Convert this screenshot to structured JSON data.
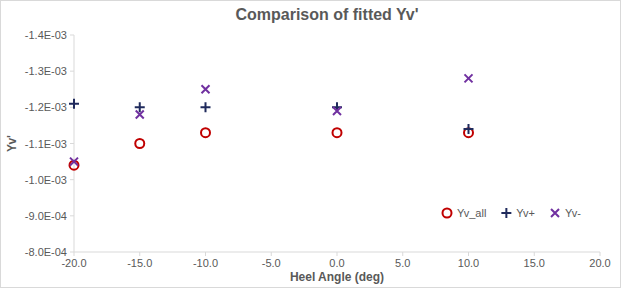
{
  "chart_data": {
    "type": "scatter",
    "title": "Comparison of fitted Yv'",
    "x_label": "Heel Angle (deg)",
    "y_label": "Yv'",
    "series": [
      {
        "name": "Yv_all",
        "color": "#c00000",
        "marker": "circle",
        "x": [
          -20,
          -15,
          -10,
          0,
          10
        ],
        "values": [
          -0.00104,
          -0.0011,
          -0.00113,
          -0.00113,
          -0.00113
        ]
      },
      {
        "name": "Yv+",
        "color": "#1f2a5c",
        "marker": "plus",
        "x": [
          -20,
          -15,
          -10,
          0,
          10
        ],
        "values": [
          -0.00121,
          -0.0012,
          -0.0012,
          -0.0012,
          -0.00114
        ]
      },
      {
        "name": "Yv-",
        "color": "#7030a0",
        "marker": "x",
        "x": [
          -20,
          -15,
          -10,
          0,
          10
        ],
        "values": [
          -0.00105,
          -0.00118,
          -0.00125,
          -0.00119,
          -0.00128
        ]
      }
    ],
    "xlim": [
      -20,
      20
    ],
    "xticks": [
      {
        "value": -20,
        "label": "-20.0"
      },
      {
        "value": -15,
        "label": "-15.0"
      },
      {
        "value": -10,
        "label": "-10.0"
      },
      {
        "value": -5,
        "label": "-5.0"
      },
      {
        "value": 0,
        "label": "0.0"
      },
      {
        "value": 5,
        "label": "5.0"
      },
      {
        "value": 10,
        "label": "10.0"
      },
      {
        "value": 15,
        "label": "15.0"
      },
      {
        "value": 20,
        "label": "20.0"
      }
    ],
    "ylim": [
      -0.0008,
      -0.0014
    ],
    "yticks": [
      {
        "value": -0.0014,
        "label": "-1.4E-03"
      },
      {
        "value": -0.0013,
        "label": "-1.3E-03"
      },
      {
        "value": -0.0012,
        "label": "-1.2E-03"
      },
      {
        "value": -0.0011,
        "label": "-1.1E-03"
      },
      {
        "value": -0.001,
        "label": "-1.0E-03"
      },
      {
        "value": -0.0009,
        "label": "-9.0E-04"
      },
      {
        "value": -0.0008,
        "label": "-8.0E-04"
      }
    ],
    "grid": false,
    "legend": "lower right"
  }
}
